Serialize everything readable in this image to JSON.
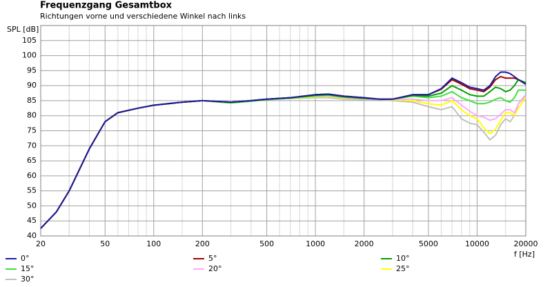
{
  "chart_data": {
    "type": "line",
    "title": "Frequenzgang Gesamtbox",
    "subtitle": "Richtungen vorne und verschiedene Winkel nach links",
    "ylabel": "SPL [dB]",
    "xlabel": "f [Hz]",
    "log_x": true,
    "grid": true,
    "xlim": [
      20,
      20000
    ],
    "ylim": [
      40,
      110
    ],
    "xticks": [
      20,
      50,
      100,
      200,
      500,
      1000,
      2000,
      5000,
      10000,
      20000
    ],
    "x_minor_ticks": [
      30,
      40,
      60,
      70,
      80,
      90,
      300,
      400,
      600,
      700,
      800,
      900,
      3000,
      4000,
      6000,
      7000,
      8000,
      9000,
      30,
      150,
      1500,
      15000,
      3000,
      4000
    ],
    "yticks": [
      40,
      45,
      50,
      55,
      60,
      65,
      70,
      75,
      80,
      85,
      90,
      95,
      100,
      105
    ],
    "x": [
      20,
      25,
      30,
      40,
      50,
      60,
      80,
      100,
      150,
      200,
      300,
      400,
      500,
      700,
      1000,
      1200,
      1500,
      2000,
      2500,
      3000,
      4000,
      5000,
      6000,
      7000,
      8000,
      9000,
      10000,
      11000,
      12000,
      13000,
      14000,
      15000,
      16000,
      17000,
      18000,
      20000
    ],
    "series": [
      {
        "name": "0°",
        "color": "#1a1aa0",
        "values": [
          42.5,
          48,
          55,
          69,
          78,
          81,
          82.5,
          83.5,
          84.5,
          85,
          84.5,
          85,
          85.5,
          86,
          87,
          87.2,
          86.5,
          86,
          85.5,
          85.5,
          87,
          87,
          89,
          92.5,
          91,
          89.5,
          89,
          88.5,
          90,
          93,
          94.5,
          94.5,
          94,
          93,
          92,
          90.5
        ]
      },
      {
        "name": "5°",
        "color": "#a00000",
        "values": [
          42.5,
          48,
          55,
          69,
          78,
          81,
          82.5,
          83.5,
          84.5,
          85,
          84.5,
          85,
          85.5,
          86,
          87,
          87.2,
          86.5,
          86,
          85.5,
          85.5,
          87,
          87,
          88.8,
          92,
          90.5,
          89,
          88.5,
          88,
          89.5,
          92,
          93,
          92.5,
          92.5,
          92.5,
          92,
          90.5
        ]
      },
      {
        "name": "10°",
        "color": "#00a000",
        "values": [
          42.5,
          48,
          55,
          69,
          78,
          81,
          82.5,
          83.5,
          84.5,
          85,
          84.5,
          85,
          85.5,
          86,
          86.8,
          87,
          86.3,
          85.8,
          85.5,
          85.5,
          86.8,
          86.5,
          87.5,
          90,
          88.5,
          87,
          86.5,
          86.5,
          88,
          89.5,
          89,
          88,
          88.5,
          90,
          92,
          91
        ]
      },
      {
        "name": "15°",
        "color": "#40e040",
        "values": [
          42.5,
          48,
          55,
          69,
          78,
          81,
          82.5,
          83.5,
          84.5,
          85,
          84.2,
          84.8,
          85.3,
          85.8,
          86.6,
          86.8,
          86.2,
          85.7,
          85.5,
          85.5,
          86.5,
          86,
          86.5,
          88,
          86,
          85,
          84,
          84,
          84.5,
          85.5,
          86,
          85,
          84.5,
          86,
          88.5,
          88.5
        ]
      },
      {
        "name": "20°",
        "color": "#ffa8ff",
        "values": [
          42.5,
          48,
          55,
          69,
          78,
          81,
          82.5,
          83.5,
          84.5,
          85,
          84.5,
          85,
          85.5,
          86,
          86.5,
          86.6,
          86,
          85.5,
          85.5,
          85.5,
          85.5,
          85,
          85,
          86,
          83.5,
          81.5,
          80,
          79.5,
          78.5,
          79,
          80.5,
          82,
          82,
          81,
          84,
          86.5
        ]
      },
      {
        "name": "25°",
        "color": "#ffff00",
        "values": [
          42.5,
          48,
          55,
          69,
          78,
          81,
          82.5,
          83.5,
          84.5,
          85,
          84.5,
          85,
          85.5,
          85.8,
          86.3,
          86.4,
          85.8,
          85.5,
          85.5,
          85.3,
          85,
          84,
          83.5,
          85,
          82,
          80,
          79,
          76,
          74,
          75.5,
          78.5,
          81,
          81,
          80,
          82.5,
          86
        ]
      },
      {
        "name": "30°",
        "color": "#c0c0c0",
        "values": [
          42.5,
          48,
          55,
          69,
          78,
          81,
          82.5,
          83.5,
          84.5,
          85,
          84.5,
          85,
          85.5,
          85.7,
          86,
          86,
          85.5,
          85.3,
          85.3,
          85,
          84.5,
          83,
          82,
          83,
          79,
          77.5,
          77,
          74.5,
          72,
          73.5,
          77,
          79,
          78,
          80,
          84,
          87
        ]
      }
    ]
  }
}
